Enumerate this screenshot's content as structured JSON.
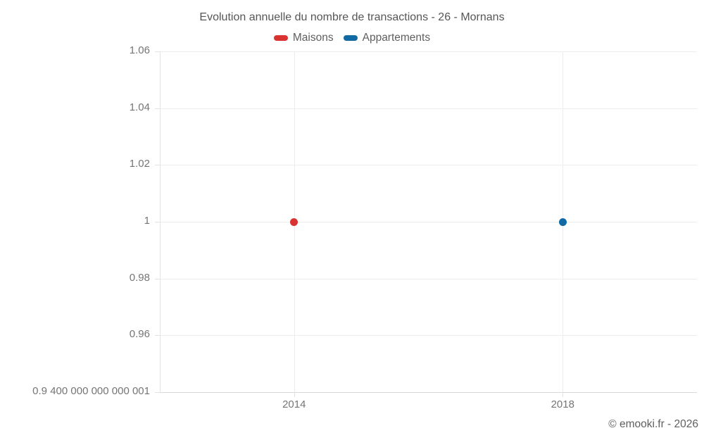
{
  "chart_data": {
    "type": "scatter",
    "title": "Evolution annuelle du nombre de transactions - 26 - Mornans",
    "xlabel": "",
    "ylabel": "",
    "grid": true,
    "legend_position": "top-center",
    "xlim": [
      2012,
      2020
    ],
    "ylim": [
      0.94,
      1.06
    ],
    "x_ticks": [
      {
        "value": 2014,
        "label": "2014"
      },
      {
        "value": 2018,
        "label": "2018"
      }
    ],
    "y_ticks": [
      {
        "value": 1.06,
        "label": "1.06"
      },
      {
        "value": 1.04,
        "label": "1.04"
      },
      {
        "value": 1.02,
        "label": "1.02"
      },
      {
        "value": 1.0,
        "label": "1"
      },
      {
        "value": 0.98,
        "label": "0.98"
      },
      {
        "value": 0.96,
        "label": "0.96"
      },
      {
        "value": 0.94,
        "label": "0.9 400 000 000 000 001"
      }
    ],
    "series": [
      {
        "name": "Maisons",
        "color": "#d93331",
        "points": [
          {
            "x": 2014,
            "y": 1
          }
        ]
      },
      {
        "name": "Appartements",
        "color": "#116aa3",
        "points": [
          {
            "x": 2018,
            "y": 1
          }
        ]
      }
    ]
  },
  "footer": {
    "copyright": "© emooki.fr - 2026"
  }
}
